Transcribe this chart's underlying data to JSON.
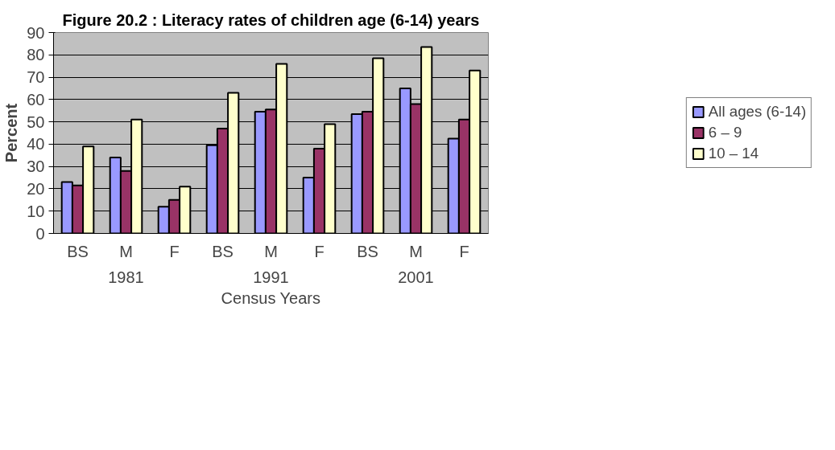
{
  "chart_data": {
    "type": "bar",
    "title": "Figure 20.2 : Literacy rates of children age (6-14) years",
    "categories": [
      "BS",
      "M",
      "F",
      "BS",
      "M",
      "F",
      "BS",
      "M",
      "F"
    ],
    "annotations": [
      "1981",
      "1991",
      "2001"
    ],
    "xlabel": "Census Years",
    "ylabel": "Percent",
    "series": [
      {
        "name": "All ages (6-14)",
        "color": "#9999ff",
        "values": [
          23,
          34,
          12,
          39.5,
          54.5,
          25,
          53.5,
          65,
          42.5
        ]
      },
      {
        "name": "6 – 9",
        "color": "#993366",
        "values": [
          21.5,
          28,
          15,
          47,
          55.5,
          38,
          54.5,
          58,
          51
        ]
      },
      {
        "name": "10 – 14",
        "color": "#ffffcc",
        "values": [
          39,
          51,
          21,
          63,
          76,
          49,
          78.5,
          83.5,
          73
        ]
      }
    ],
    "ylim": [
      0,
      90
    ],
    "yticks": [
      0,
      10,
      20,
      30,
      40,
      50,
      60,
      70,
      80,
      90
    ],
    "grid": "y",
    "legend": "right"
  }
}
